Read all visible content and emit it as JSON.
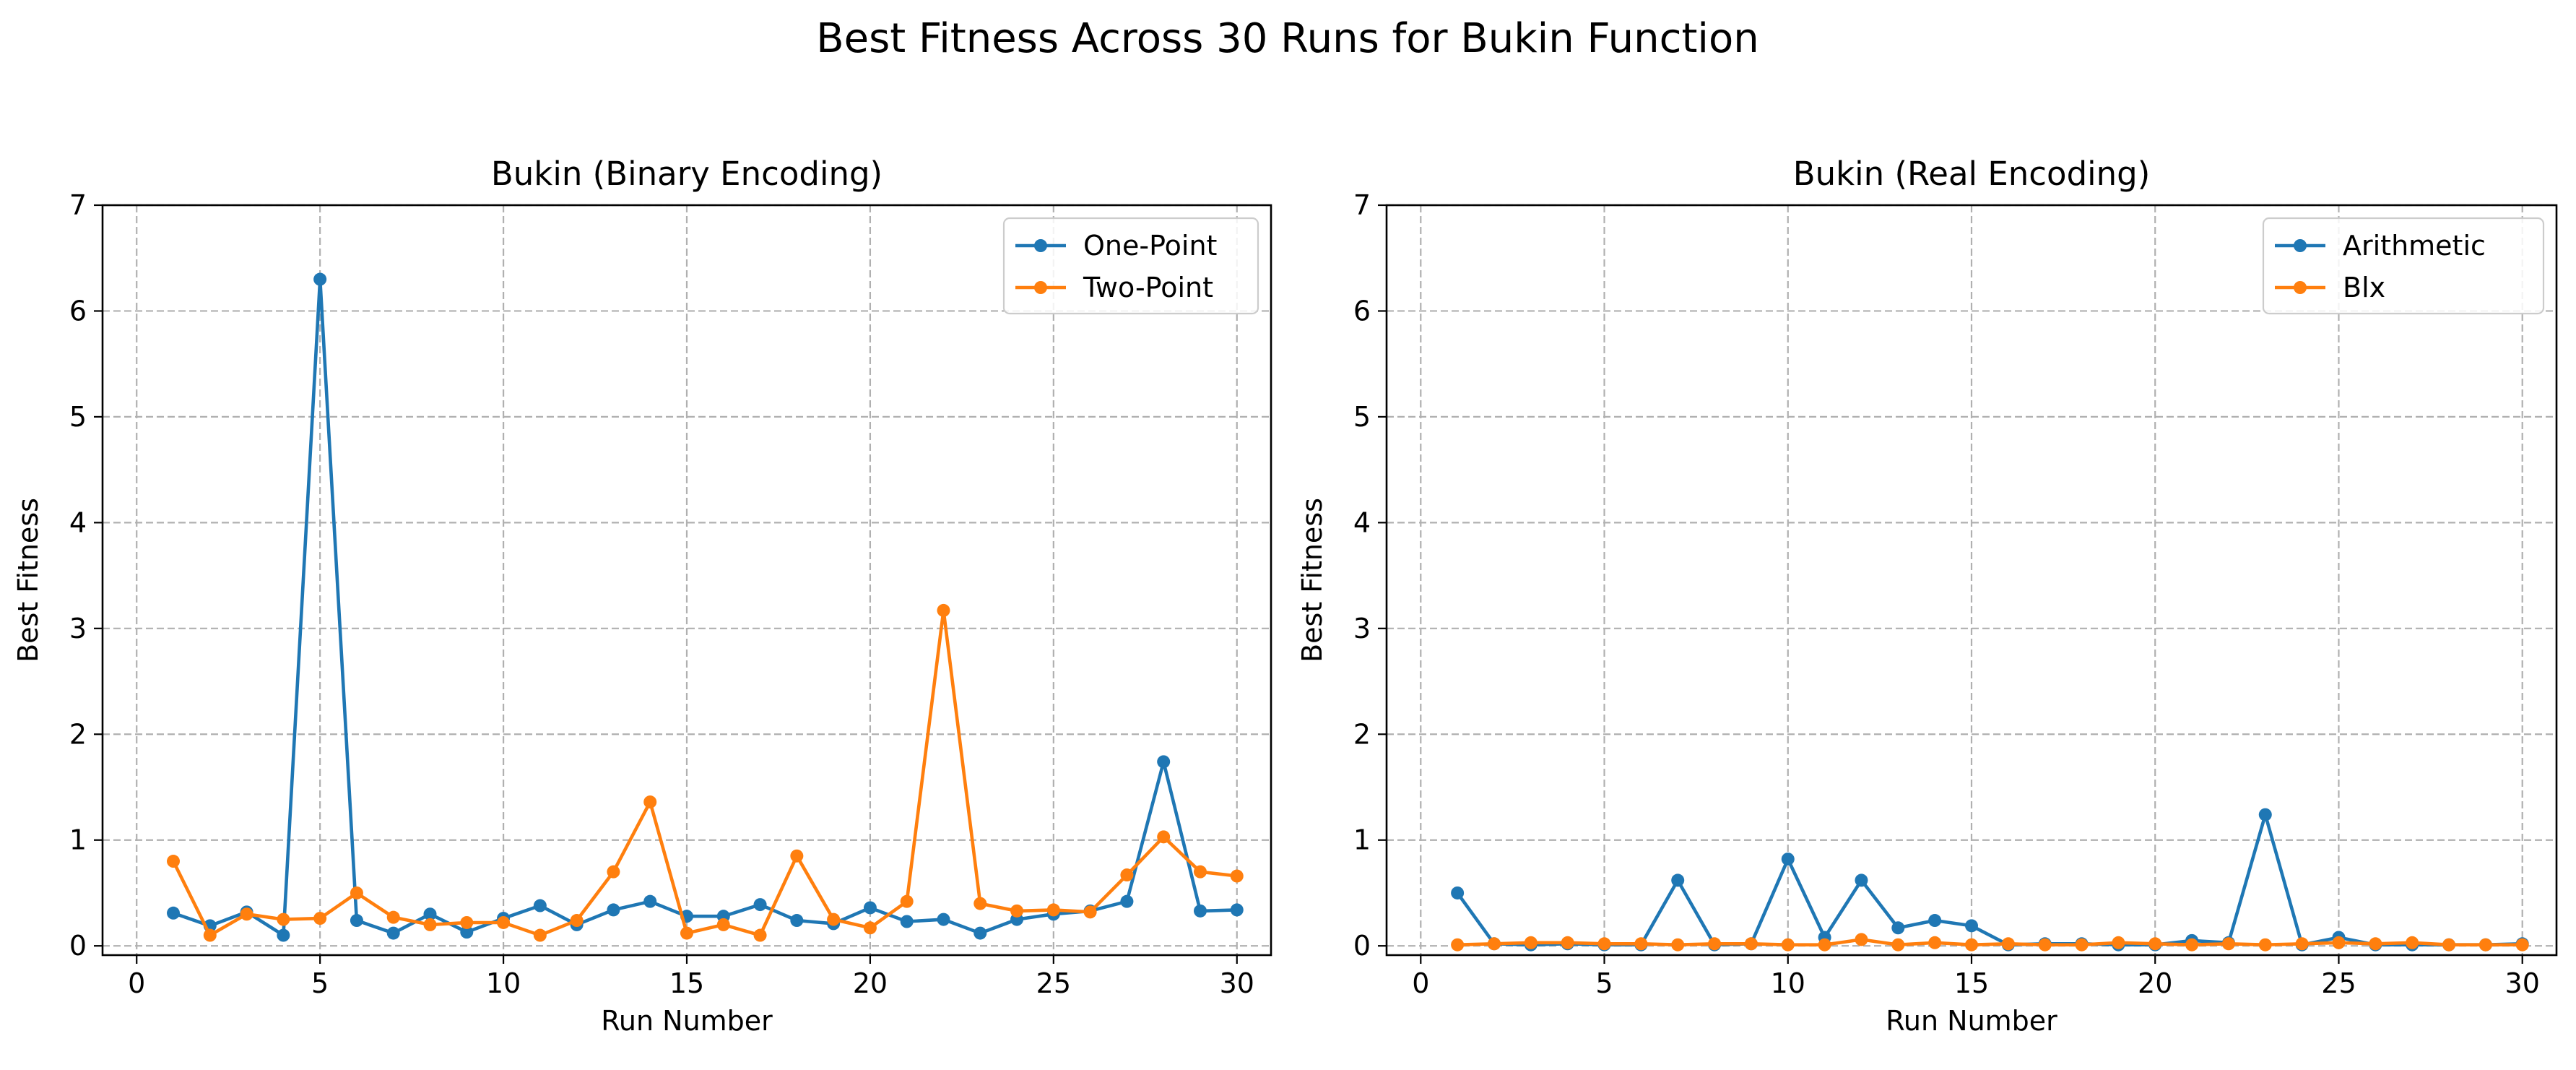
{
  "figure": {
    "suptitle": "Best Fitness Across 30 Runs for Bukin Function"
  },
  "chart_data": [
    {
      "type": "line",
      "title": "Bukin (Binary Encoding)",
      "xlabel": "Run Number",
      "ylabel": "Best Fitness",
      "xlim": [
        0,
        30
      ],
      "ylim": [
        0,
        7
      ],
      "xticks": [
        0,
        5,
        10,
        15,
        20,
        25,
        30
      ],
      "yticks": [
        0,
        1,
        2,
        3,
        4,
        5,
        6,
        7
      ],
      "grid": true,
      "legend_position": "top-right",
      "x": [
        1,
        2,
        3,
        4,
        5,
        6,
        7,
        8,
        9,
        10,
        11,
        12,
        13,
        14,
        15,
        16,
        17,
        18,
        19,
        20,
        21,
        22,
        23,
        24,
        25,
        26,
        27,
        28,
        29,
        30
      ],
      "series": [
        {
          "name": "One-Point",
          "color": "#1f77b4",
          "values": [
            0.31,
            0.19,
            0.32,
            0.1,
            6.3,
            0.24,
            0.12,
            0.3,
            0.13,
            0.26,
            0.38,
            0.2,
            0.34,
            0.42,
            0.28,
            0.28,
            0.39,
            0.24,
            0.21,
            0.36,
            0.23,
            0.25,
            0.12,
            0.25,
            0.3,
            0.33,
            0.42,
            1.74,
            0.33,
            0.34
          ]
        },
        {
          "name": "Two-Point",
          "color": "#ff7f0e",
          "values": [
            0.8,
            0.1,
            0.3,
            0.25,
            0.26,
            0.5,
            0.27,
            0.2,
            0.22,
            0.22,
            0.1,
            0.24,
            0.7,
            1.36,
            0.12,
            0.2,
            0.1,
            0.85,
            0.25,
            0.17,
            0.42,
            3.17,
            0.4,
            0.33,
            0.34,
            0.32,
            0.67,
            1.03,
            0.7,
            0.66
          ]
        }
      ]
    },
    {
      "type": "line",
      "title": "Bukin (Real Encoding)",
      "xlabel": "Run Number",
      "ylabel": "Best Fitness",
      "xlim": [
        0,
        30
      ],
      "ylim": [
        0,
        7
      ],
      "xticks": [
        0,
        5,
        10,
        15,
        20,
        25,
        30
      ],
      "yticks": [
        0,
        1,
        2,
        3,
        4,
        5,
        6,
        7
      ],
      "grid": true,
      "legend_position": "top-right",
      "x": [
        1,
        2,
        3,
        4,
        5,
        6,
        7,
        8,
        9,
        10,
        11,
        12,
        13,
        14,
        15,
        16,
        17,
        18,
        19,
        20,
        21,
        22,
        23,
        24,
        25,
        26,
        27,
        28,
        29,
        30
      ],
      "series": [
        {
          "name": "Arithmetic",
          "color": "#1f77b4",
          "values": [
            0.5,
            0.02,
            0.01,
            0.02,
            0.01,
            0.01,
            0.62,
            0.01,
            0.02,
            0.82,
            0.08,
            0.62,
            0.17,
            0.24,
            0.19,
            0.01,
            0.02,
            0.02,
            0.01,
            0.01,
            0.05,
            0.03,
            1.24,
            0.01,
            0.08,
            0.01,
            0.01,
            0.01,
            0.01,
            0.02
          ]
        },
        {
          "name": "Blx",
          "color": "#ff7f0e",
          "values": [
            0.01,
            0.02,
            0.03,
            0.03,
            0.02,
            0.02,
            0.01,
            0.02,
            0.02,
            0.01,
            0.01,
            0.06,
            0.01,
            0.03,
            0.01,
            0.02,
            0.01,
            0.01,
            0.03,
            0.02,
            0.01,
            0.02,
            0.01,
            0.02,
            0.03,
            0.02,
            0.03,
            0.01,
            0.01,
            0.01
          ]
        }
      ]
    }
  ]
}
